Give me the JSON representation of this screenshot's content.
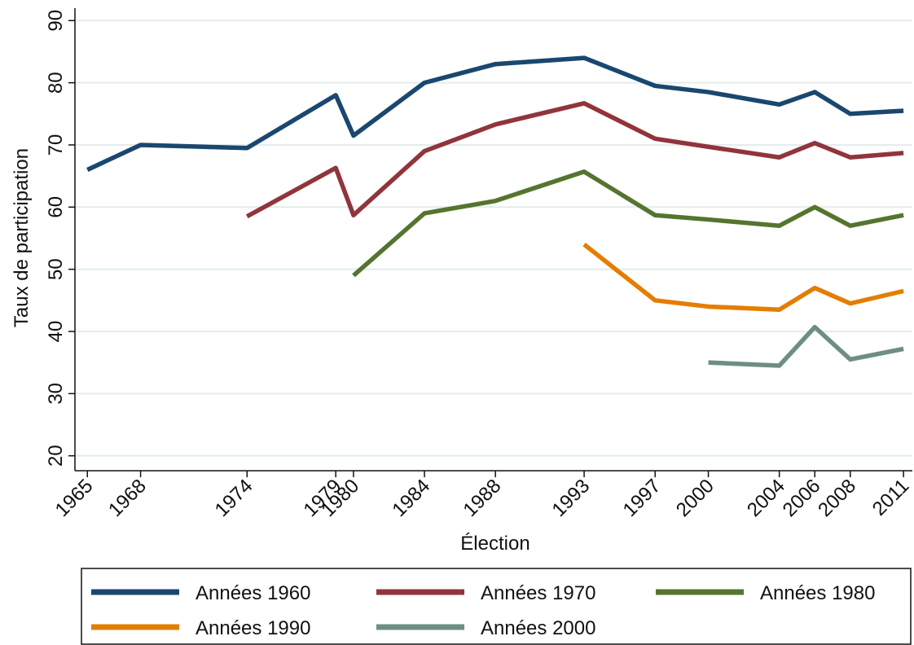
{
  "chart_data": {
    "type": "line",
    "xlabel": "Élection",
    "ylabel": "Taux de participation",
    "x": [
      1965,
      1968,
      1974,
      1979,
      1980,
      1984,
      1988,
      1993,
      1997,
      2000,
      2004,
      2006,
      2008,
      2011
    ],
    "series": [
      {
        "name": "Années 1960",
        "color": "#1a476f",
        "values": [
          66,
          70,
          69.5,
          78,
          71.5,
          80,
          83,
          84,
          79.5,
          78.5,
          76.5,
          78.5,
          75,
          75.5
        ]
      },
      {
        "name": "Années 1970",
        "color": "#90353b",
        "values": [
          null,
          null,
          58.5,
          66.3,
          58.7,
          69,
          73.3,
          76.7,
          71,
          69.7,
          68,
          70.3,
          68,
          68.7
        ]
      },
      {
        "name": "Années 1980",
        "color": "#55752f",
        "values": [
          null,
          null,
          null,
          null,
          49,
          59,
          61,
          65.7,
          58.7,
          58,
          57,
          60,
          57,
          58.7
        ]
      },
      {
        "name": "Années 1990",
        "color": "#e37e00",
        "values": [
          null,
          null,
          null,
          null,
          null,
          null,
          null,
          54,
          45,
          44,
          43.5,
          47,
          44.5,
          46.5
        ]
      },
      {
        "name": "Années 2000",
        "color": "#6e8e84",
        "values": [
          null,
          null,
          null,
          null,
          null,
          null,
          null,
          null,
          null,
          35,
          34.5,
          40.7,
          35.5,
          37.2
        ]
      }
    ],
    "xlim": [
      1964.3,
      2011.5
    ],
    "xticks": [
      1965,
      1968,
      1974,
      1979,
      1980,
      1984,
      1988,
      1993,
      1997,
      2000,
      2004,
      2006,
      2008,
      2011
    ],
    "ylim": [
      17.6,
      92
    ],
    "yticks": [
      20,
      30,
      40,
      50,
      60,
      70,
      80,
      90
    ],
    "grid": true,
    "legend": "bottom"
  }
}
